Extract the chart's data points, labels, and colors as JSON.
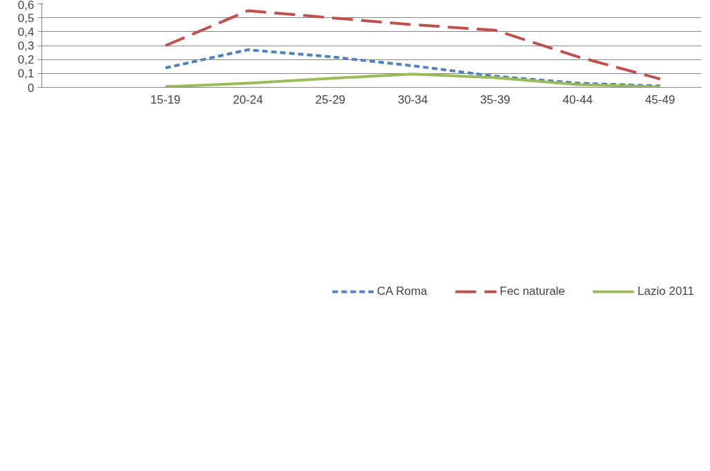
{
  "chart_data": {
    "type": "line",
    "categories": [
      null,
      "15-19",
      "20-24",
      "25-29",
      "30-34",
      "35-39",
      "40-44",
      "45-49"
    ],
    "series": [
      {
        "name": "CA Roma",
        "color": "#4f81bd",
        "line_style": "dotted",
        "values": [
          null,
          0.14,
          0.27,
          0.22,
          0.155,
          0.08,
          0.03,
          0.01
        ]
      },
      {
        "name": "Fec naturale",
        "color": "#c0504d",
        "line_style": "dashed",
        "values": [
          null,
          0.3,
          0.55,
          0.5,
          0.45,
          0.41,
          0.22,
          0.06
        ]
      },
      {
        "name": "Lazio 2011",
        "color": "#9bbb59",
        "line_style": "solid",
        "values": [
          null,
          0.005,
          0.03,
          0.065,
          0.095,
          0.07,
          0.02,
          0.003
        ]
      }
    ],
    "ylim": [
      0,
      0.6
    ],
    "yticks": [
      0,
      {
        "value": 0.1,
        "label": "0,1"
      },
      {
        "value": 0.2,
        "label": "0,2"
      },
      {
        "value": 0.3,
        "label": "0,3"
      },
      {
        "value": 0.4,
        "label": "0,4"
      },
      {
        "value": 0.5,
        "label": "0,5"
      },
      {
        "value": 0.6,
        "label": "0,6"
      }
    ],
    "grid": "y",
    "legend": "bottom",
    "marker": "none"
  }
}
